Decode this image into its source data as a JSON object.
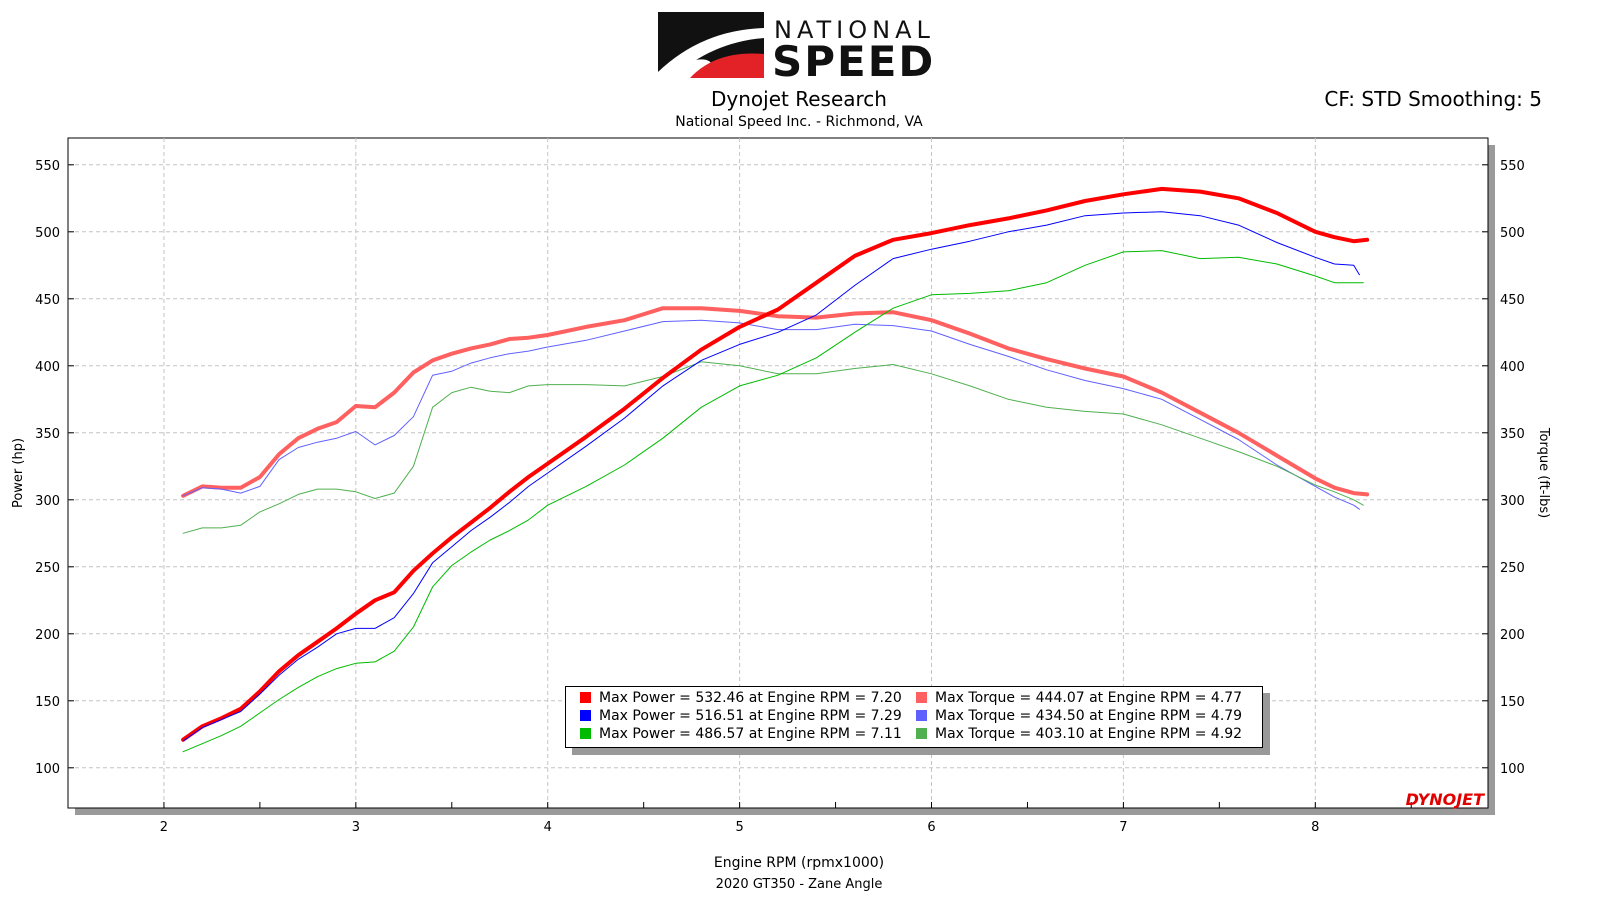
{
  "header": {
    "logo_top": "NATIONAL",
    "logo_bottom": "SPEED",
    "title": "Dynojet Research",
    "subtitle": "National Speed Inc. - Richmond, VA",
    "correction": "CF: STD Smoothing: 5"
  },
  "footer": {
    "run_label": "2020 GT350 - Zane Angle"
  },
  "watermark": "DYNOJET",
  "colors": {
    "power_1": "#ff0000",
    "power_2": "#0000ff",
    "power_3": "#00bb00",
    "torque_1": "#ff6060",
    "torque_2": "#6060ff",
    "torque_3": "#50b050"
  },
  "legend": [
    {
      "text": "Max Power = 532.46 at Engine RPM = 7.20",
      "color": "#ff0000"
    },
    {
      "text": "Max Power = 516.51 at Engine RPM = 7.29",
      "color": "#0000ff"
    },
    {
      "text": "Max Power = 486.57 at Engine RPM = 7.11",
      "color": "#00bb00"
    },
    {
      "text": "Max Torque = 444.07 at Engine RPM = 4.77",
      "color": "#ff6060"
    },
    {
      "text": "Max Torque = 434.50 at Engine RPM = 4.79",
      "color": "#6060ff"
    },
    {
      "text": "Max Torque = 403.10 at Engine RPM = 4.92",
      "color": "#50b050"
    }
  ],
  "chart_data": {
    "type": "line",
    "xlabel": "Engine RPM (rpmx1000)",
    "ylabel": "Power (hp)",
    "ylabel_right": "Torque (ft-lbs)",
    "xlim": [
      1.5,
      8.9
    ],
    "ylim": [
      70,
      570
    ],
    "x_ticks": [
      2,
      3,
      4,
      5,
      6,
      7,
      8
    ],
    "y_ticks": [
      100,
      150,
      200,
      250,
      300,
      350,
      400,
      450,
      500,
      550
    ],
    "grid": true,
    "legend_position": "bottom-center",
    "series": [
      {
        "kind": "power",
        "run": 1,
        "color": "#ff0000",
        "width": 4,
        "x": [
          2.1,
          2.2,
          2.3,
          2.4,
          2.5,
          2.6,
          2.7,
          2.8,
          2.9,
          3.0,
          3.1,
          3.2,
          3.3,
          3.4,
          3.5,
          3.6,
          3.7,
          3.8,
          3.9,
          4.0,
          4.2,
          4.4,
          4.6,
          4.8,
          5.0,
          5.2,
          5.4,
          5.6,
          5.8,
          6.0,
          6.2,
          6.4,
          6.6,
          6.8,
          7.0,
          7.2,
          7.4,
          7.6,
          7.8,
          8.0,
          8.1,
          8.2,
          8.27
        ],
        "y": [
          121,
          131,
          137,
          144,
          157,
          172,
          184,
          194,
          204,
          215,
          225,
          231,
          247,
          260,
          272,
          283,
          294,
          306,
          317,
          327,
          347,
          368,
          391,
          412,
          429,
          442,
          462,
          482,
          494,
          499,
          505,
          510,
          516,
          523,
          528,
          532,
          530,
          525,
          514,
          500,
          496,
          493,
          494
        ]
      },
      {
        "kind": "power",
        "run": 2,
        "color": "#0000ff",
        "width": 1,
        "x": [
          2.1,
          2.2,
          2.3,
          2.4,
          2.5,
          2.6,
          2.7,
          2.8,
          2.9,
          3.0,
          3.1,
          3.2,
          3.3,
          3.4,
          3.5,
          3.6,
          3.7,
          3.8,
          3.9,
          4.0,
          4.2,
          4.4,
          4.6,
          4.8,
          5.0,
          5.2,
          5.4,
          5.6,
          5.8,
          6.0,
          6.2,
          6.4,
          6.6,
          6.8,
          7.0,
          7.2,
          7.4,
          7.6,
          7.8,
          8.0,
          8.1,
          8.2,
          8.23
        ],
        "y": [
          120,
          130,
          136,
          142,
          155,
          169,
          181,
          190,
          200,
          204,
          204,
          212,
          230,
          253,
          265,
          277,
          287,
          298,
          310,
          320,
          340,
          361,
          385,
          404,
          416,
          425,
          438,
          460,
          480,
          487,
          493,
          500,
          505,
          512,
          514,
          515,
          512,
          505,
          492,
          481,
          476,
          475,
          468
        ]
      },
      {
        "kind": "power",
        "run": 3,
        "color": "#00bb00",
        "width": 1,
        "x": [
          2.1,
          2.2,
          2.3,
          2.4,
          2.5,
          2.6,
          2.7,
          2.8,
          2.9,
          3.0,
          3.1,
          3.2,
          3.3,
          3.4,
          3.5,
          3.6,
          3.7,
          3.8,
          3.9,
          4.0,
          4.2,
          4.4,
          4.6,
          4.8,
          5.0,
          5.2,
          5.4,
          5.6,
          5.8,
          6.0,
          6.2,
          6.4,
          6.6,
          6.8,
          7.0,
          7.2,
          7.4,
          7.6,
          7.8,
          8.0,
          8.1,
          8.2,
          8.25
        ],
        "y": [
          112,
          118,
          124,
          131,
          141,
          151,
          160,
          168,
          174,
          178,
          179,
          187,
          205,
          235,
          251,
          261,
          270,
          277,
          285,
          296,
          310,
          326,
          346,
          369,
          385,
          393,
          406,
          425,
          443,
          453,
          454,
          456,
          462,
          475,
          485,
          486,
          480,
          481,
          476,
          467,
          462,
          462,
          462
        ]
      },
      {
        "kind": "torque",
        "run": 1,
        "color": "#ff6060",
        "width": 4,
        "x": [
          2.1,
          2.2,
          2.3,
          2.4,
          2.5,
          2.6,
          2.7,
          2.8,
          2.9,
          3.0,
          3.1,
          3.2,
          3.3,
          3.4,
          3.5,
          3.6,
          3.7,
          3.8,
          3.9,
          4.0,
          4.2,
          4.4,
          4.6,
          4.8,
          5.0,
          5.2,
          5.4,
          5.6,
          5.8,
          6.0,
          6.2,
          6.4,
          6.6,
          6.8,
          7.0,
          7.2,
          7.4,
          7.6,
          7.8,
          8.0,
          8.1,
          8.2,
          8.27
        ],
        "y": [
          303,
          310,
          309,
          309,
          317,
          334,
          346,
          353,
          358,
          370,
          369,
          380,
          395,
          404,
          409,
          413,
          416,
          420,
          421,
          423,
          429,
          434,
          443,
          443,
          441,
          437,
          436,
          439,
          440,
          434,
          424,
          413,
          405,
          398,
          392,
          380,
          365,
          350,
          333,
          316,
          309,
          305,
          304
        ]
      },
      {
        "kind": "torque",
        "run": 2,
        "color": "#6060ff",
        "width": 1,
        "x": [
          2.1,
          2.2,
          2.3,
          2.4,
          2.5,
          2.6,
          2.7,
          2.8,
          2.9,
          3.0,
          3.1,
          3.2,
          3.3,
          3.4,
          3.5,
          3.6,
          3.7,
          3.8,
          3.9,
          4.0,
          4.2,
          4.4,
          4.6,
          4.8,
          5.0,
          5.2,
          5.4,
          5.6,
          5.8,
          6.0,
          6.2,
          6.4,
          6.6,
          6.8,
          7.0,
          7.2,
          7.4,
          7.6,
          7.8,
          8.0,
          8.1,
          8.2,
          8.23
        ],
        "y": [
          303,
          309,
          308,
          305,
          310,
          330,
          339,
          343,
          346,
          351,
          341,
          348,
          362,
          393,
          396,
          402,
          406,
          409,
          411,
          414,
          419,
          426,
          433,
          434,
          432,
          427,
          427,
          431,
          430,
          426,
          416,
          407,
          397,
          389,
          383,
          375,
          360,
          345,
          326,
          310,
          302,
          296,
          293
        ]
      },
      {
        "kind": "torque",
        "run": 3,
        "color": "#50b050",
        "width": 1,
        "x": [
          2.1,
          2.2,
          2.3,
          2.4,
          2.5,
          2.6,
          2.7,
          2.8,
          2.9,
          3.0,
          3.1,
          3.2,
          3.3,
          3.4,
          3.5,
          3.6,
          3.7,
          3.8,
          3.9,
          4.0,
          4.2,
          4.4,
          4.6,
          4.8,
          5.0,
          5.2,
          5.4,
          5.6,
          5.8,
          6.0,
          6.2,
          6.4,
          6.6,
          6.8,
          7.0,
          7.2,
          7.4,
          7.6,
          7.8,
          8.0,
          8.1,
          8.2,
          8.25
        ],
        "y": [
          275,
          279,
          279,
          281,
          291,
          297,
          304,
          308,
          308,
          306,
          301,
          305,
          325,
          369,
          380,
          384,
          381,
          380,
          385,
          386,
          386,
          385,
          392,
          403,
          400,
          394,
          394,
          398,
          401,
          394,
          385,
          375,
          369,
          366,
          364,
          356,
          346,
          336,
          325,
          311,
          306,
          300,
          296
        ]
      }
    ]
  }
}
